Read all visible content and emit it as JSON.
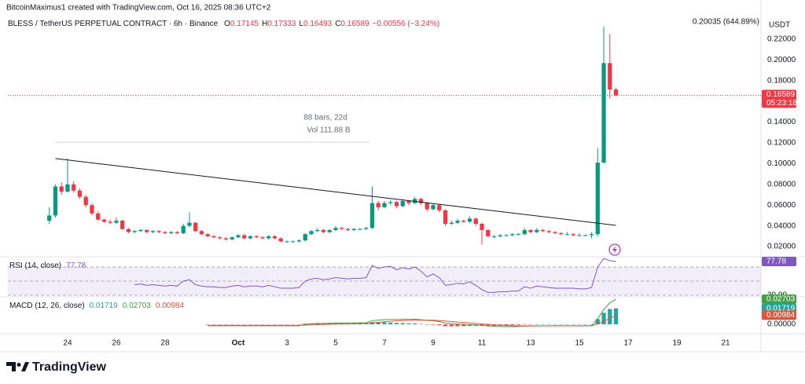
{
  "chart_data": {
    "type": "candlestick",
    "credit": "BitcoinMaximus1 created with TradingView.com, Oct 16, 2025 08:36 UTC+2",
    "title": "BLESS / TetherUS PERPETUAL CONTRACT · 6h · Binance",
    "ohlc_labels": [
      "O",
      "H",
      "L",
      "C"
    ],
    "change": "−0.00556 (−3.24%)",
    "currency": "USDT",
    "high_label": "0.20035 (644.89%)",
    "countdown": "05:23:18",
    "measure_labels": [
      "88 bars, 22d",
      "Vol 111.88 B"
    ],
    "brand": "TradingView",
    "up_color": "#089981",
    "down_color": "#f23645",
    "grid": false,
    "xlim": [
      -2.45,
      28.45
    ],
    "xticks": [
      {
        "value": 0,
        "label": "24"
      },
      {
        "value": 2,
        "label": "26"
      },
      {
        "value": 4,
        "label": "28"
      },
      {
        "value": 7,
        "label": "Oct"
      },
      {
        "value": 9,
        "label": "3"
      },
      {
        "value": 11,
        "label": "5"
      },
      {
        "value": 13,
        "label": "7"
      },
      {
        "value": 15,
        "label": "9"
      },
      {
        "value": 17,
        "label": "11"
      },
      {
        "value": 19,
        "label": "13"
      },
      {
        "value": 21,
        "label": "15"
      },
      {
        "value": 23,
        "label": "17"
      },
      {
        "value": 25,
        "label": "19"
      },
      {
        "value": 27,
        "label": "21"
      }
    ],
    "ylim": [
      0.0102,
      0.2427
    ],
    "yticks": [
      {
        "value": 0.02,
        "label": "0.02000"
      },
      {
        "value": 0.04,
        "label": "0.04000"
      },
      {
        "value": 0.06,
        "label": "0.06000"
      },
      {
        "value": 0.08,
        "label": "0.08000"
      },
      {
        "value": 0.1,
        "label": "0.10000"
      },
      {
        "value": 0.12,
        "label": "0.12000"
      },
      {
        "value": 0.14,
        "label": "0.14000"
      },
      {
        "value": 0.16,
        "label": "0.16000"
      },
      {
        "value": 0.18,
        "label": "0.18000"
      },
      {
        "value": 0.2,
        "label": "0.20000"
      },
      {
        "value": 0.22,
        "label": "0.22000"
      }
    ],
    "x": [
      -0.75,
      -0.5,
      -0.25,
      0,
      0.25,
      0.5,
      0.75,
      1,
      1.25,
      1.5,
      1.75,
      2,
      2.25,
      2.5,
      2.75,
      3,
      3.25,
      3.5,
      3.75,
      4,
      4.25,
      4.5,
      4.75,
      5,
      5.25,
      5.5,
      5.75,
      6,
      6.25,
      6.5,
      6.75,
      7,
      7.25,
      7.5,
      7.75,
      8,
      8.25,
      8.5,
      8.75,
      9,
      9.25,
      9.5,
      9.75,
      10,
      10.25,
      10.5,
      10.75,
      11,
      11.25,
      11.5,
      11.75,
      12,
      12.25,
      12.5,
      12.75,
      13,
      13.25,
      13.5,
      13.75,
      14,
      14.25,
      14.5,
      14.75,
      15,
      15.25,
      15.5,
      15.75,
      16,
      16.25,
      16.5,
      16.75,
      17,
      17.25,
      17.5,
      17.75,
      18,
      18.25,
      18.5,
      18.75,
      19,
      19.25,
      19.5,
      19.75,
      20,
      20.25,
      20.5,
      20.75,
      21,
      21.25,
      21.5,
      21.75,
      22,
      22.25,
      22.5
    ],
    "candles": [
      [
        0.045,
        0.058,
        0.042,
        0.05
      ],
      [
        0.05,
        0.08,
        0.048,
        0.078
      ],
      [
        0.078,
        0.082,
        0.07,
        0.073
      ],
      [
        0.073,
        0.105,
        0.072,
        0.08
      ],
      [
        0.08,
        0.083,
        0.072,
        0.074
      ],
      [
        0.074,
        0.076,
        0.066,
        0.068
      ],
      [
        0.068,
        0.07,
        0.058,
        0.06
      ],
      [
        0.06,
        0.062,
        0.05,
        0.052
      ],
      [
        0.052,
        0.054,
        0.045,
        0.046
      ],
      [
        0.046,
        0.047,
        0.043,
        0.044
      ],
      [
        0.044,
        0.046,
        0.042,
        0.043
      ],
      [
        0.043,
        0.048,
        0.042,
        0.045
      ],
      [
        0.045,
        0.046,
        0.036,
        0.037
      ],
      [
        0.037,
        0.038,
        0.033,
        0.034
      ],
      [
        0.034,
        0.036,
        0.033,
        0.035
      ],
      [
        0.035,
        0.037,
        0.034,
        0.036
      ],
      [
        0.036,
        0.037,
        0.033,
        0.034
      ],
      [
        0.034,
        0.036,
        0.033,
        0.035
      ],
      [
        0.035,
        0.036,
        0.033,
        0.034
      ],
      [
        0.034,
        0.035,
        0.032,
        0.033
      ],
      [
        0.033,
        0.035,
        0.032,
        0.034
      ],
      [
        0.034,
        0.035,
        0.032,
        0.033
      ],
      [
        0.033,
        0.042,
        0.032,
        0.04
      ],
      [
        0.04,
        0.053,
        0.039,
        0.043
      ],
      [
        0.043,
        0.044,
        0.034,
        0.035
      ],
      [
        0.035,
        0.036,
        0.031,
        0.032
      ],
      [
        0.032,
        0.033,
        0.029,
        0.03
      ],
      [
        0.03,
        0.031,
        0.028,
        0.029
      ],
      [
        0.029,
        0.03,
        0.027,
        0.028
      ],
      [
        0.028,
        0.029,
        0.026,
        0.027
      ],
      [
        0.027,
        0.03,
        0.026,
        0.029
      ],
      [
        0.029,
        0.032,
        0.028,
        0.031
      ],
      [
        0.031,
        0.032,
        0.027,
        0.028
      ],
      [
        0.028,
        0.031,
        0.027,
        0.03
      ],
      [
        0.03,
        0.031,
        0.028,
        0.029
      ],
      [
        0.029,
        0.03,
        0.027,
        0.028
      ],
      [
        0.028,
        0.031,
        0.027,
        0.03
      ],
      [
        0.03,
        0.031,
        0.027,
        0.028
      ],
      [
        0.028,
        0.029,
        0.024,
        0.025
      ],
      [
        0.025,
        0.026,
        0.024,
        0.025
      ],
      [
        0.025,
        0.026,
        0.024,
        0.025
      ],
      [
        0.025,
        0.027,
        0.024,
        0.026
      ],
      [
        0.026,
        0.033,
        0.025,
        0.032
      ],
      [
        0.032,
        0.036,
        0.031,
        0.035
      ],
      [
        0.035,
        0.038,
        0.034,
        0.036
      ],
      [
        0.036,
        0.037,
        0.033,
        0.034
      ],
      [
        0.034,
        0.037,
        0.033,
        0.036
      ],
      [
        0.036,
        0.04,
        0.035,
        0.038
      ],
      [
        0.038,
        0.039,
        0.036,
        0.037
      ],
      [
        0.037,
        0.038,
        0.035,
        0.036
      ],
      [
        0.036,
        0.038,
        0.035,
        0.037
      ],
      [
        0.037,
        0.038,
        0.036,
        0.037
      ],
      [
        0.037,
        0.039,
        0.036,
        0.038
      ],
      [
        0.038,
        0.078,
        0.037,
        0.062
      ],
      [
        0.062,
        0.064,
        0.055,
        0.058
      ],
      [
        0.058,
        0.064,
        0.057,
        0.062
      ],
      [
        0.062,
        0.065,
        0.06,
        0.063
      ],
      [
        0.063,
        0.064,
        0.057,
        0.059
      ],
      [
        0.059,
        0.066,
        0.058,
        0.064
      ],
      [
        0.064,
        0.065,
        0.06,
        0.062
      ],
      [
        0.062,
        0.068,
        0.061,
        0.066
      ],
      [
        0.066,
        0.067,
        0.06,
        0.062
      ],
      [
        0.062,
        0.063,
        0.054,
        0.056
      ],
      [
        0.056,
        0.061,
        0.055,
        0.06
      ],
      [
        0.06,
        0.061,
        0.053,
        0.055
      ],
      [
        0.055,
        0.056,
        0.04,
        0.042
      ],
      [
        0.042,
        0.045,
        0.041,
        0.043
      ],
      [
        0.043,
        0.047,
        0.042,
        0.045
      ],
      [
        0.045,
        0.046,
        0.043,
        0.044
      ],
      [
        0.044,
        0.049,
        0.043,
        0.047
      ],
      [
        0.047,
        0.048,
        0.04,
        0.042
      ],
      [
        0.042,
        0.043,
        0.022,
        0.036
      ],
      [
        0.036,
        0.037,
        0.029,
        0.03
      ],
      [
        0.03,
        0.031,
        0.028,
        0.03
      ],
      [
        0.03,
        0.032,
        0.029,
        0.031
      ],
      [
        0.031,
        0.032,
        0.03,
        0.031
      ],
      [
        0.031,
        0.033,
        0.03,
        0.032
      ],
      [
        0.032,
        0.033,
        0.031,
        0.032
      ],
      [
        0.032,
        0.038,
        0.031,
        0.036
      ],
      [
        0.036,
        0.037,
        0.033,
        0.034
      ],
      [
        0.034,
        0.038,
        0.033,
        0.036
      ],
      [
        0.036,
        0.037,
        0.034,
        0.035
      ],
      [
        0.035,
        0.036,
        0.033,
        0.034
      ],
      [
        0.034,
        0.035,
        0.032,
        0.033
      ],
      [
        0.033,
        0.034,
        0.031,
        0.032
      ],
      [
        0.032,
        0.034,
        0.031,
        0.032
      ],
      [
        0.032,
        0.033,
        0.03,
        0.031
      ],
      [
        0.031,
        0.033,
        0.03,
        0.031
      ],
      [
        0.031,
        0.032,
        0.03,
        0.031
      ],
      [
        0.031,
        0.034,
        0.028,
        0.032
      ],
      [
        0.032,
        0.115,
        0.03,
        0.101
      ],
      [
        0.101,
        0.232,
        0.1,
        0.197
      ],
      [
        0.197,
        0.225,
        0.163,
        0.17145
      ],
      [
        0.17145,
        0.17333,
        0.16493,
        0.16589
      ]
    ],
    "trendline": {
      "x": [
        -0.5,
        22.5
      ],
      "y": [
        0.105,
        0.0405
      ],
      "color": "#131722"
    },
    "indicators": [
      {
        "type": "line",
        "title": "RSI (14, close)",
        "ylim": [
          27.8,
          84.4
        ],
        "yticks": [
          {
            "value": 30,
            "label": "30.00"
          }
        ],
        "bands": [
          70,
          50,
          30
        ],
        "band_color": "#9598a1",
        "band_fill": "rgba(126,87,194,0.1)",
        "series": [
          {
            "color": "#7e57c2",
            "values": [
              null,
              null,
              null,
              null,
              null,
              null,
              null,
              null,
              null,
              null,
              null,
              null,
              null,
              null,
              45,
              46,
              44,
              45,
              44,
              43,
              44,
              43,
              50,
              52,
              45,
              43,
              42,
              42,
              41,
              41,
              43,
              44,
              42,
              43,
              43,
              42,
              44,
              42,
              40,
              40,
              40,
              41,
              50,
              53,
              54,
              52,
              53,
              55,
              54,
              53,
              54,
              54,
              55,
              72,
              68,
              70,
              71,
              66,
              69,
              67,
              70,
              64,
              56,
              60,
              55,
              44,
              45,
              47,
              46,
              49,
              44,
              38,
              34,
              34,
              35,
              35,
              36,
              36,
              42,
              40,
              43,
              42,
              41,
              40,
              40,
              40,
              40,
              39,
              39,
              41,
              70,
              82,
              79,
              77.78
            ]
          }
        ]
      },
      {
        "type": "macd",
        "title": "MACD (12, 26, close)",
        "ylim": [
          -0.0101,
          0.0296
        ],
        "yticks": [
          {
            "value": 0,
            "label": "0.00000"
          }
        ],
        "series": [
          {
            "color": "#26a69a",
            "negative_color": "#ef5350",
            "values": [
              null,
              null,
              null,
              null,
              null,
              null,
              null,
              null,
              null,
              null,
              null,
              null,
              null,
              null,
              null,
              null,
              null,
              null,
              null,
              null,
              null,
              null,
              null,
              null,
              null,
              null,
              -0.0003,
              -0.0003,
              -0.0003,
              -0.0003,
              -0.0003,
              -0.0003,
              -0.0003,
              -0.0003,
              -0.0003,
              -0.0003,
              -0.0003,
              -0.0003,
              -0.0003,
              -0.0003,
              -0.0003,
              -0.0003,
              0.0008,
              0.0011,
              0.0014,
              0.0012,
              0.0012,
              0.0012,
              0.0011,
              0.0009,
              0.0007,
              0.0007,
              0.0007,
              0.0024,
              0.0023,
              0.0022,
              0.0019,
              0.0015,
              0.0014,
              0.0011,
              0.001,
              0.0004,
              -0.0003,
              -0.0006,
              -0.0011,
              -0.0021,
              -0.0022,
              -0.0021,
              -0.002,
              -0.0017,
              -0.0016,
              -0.0017,
              -0.0018,
              -0.0017,
              -0.0015,
              -0.0013,
              -0.001,
              -0.0007,
              -0.0002,
              -0.0001,
              0.0001,
              0.0001,
              0.0002,
              0.0001,
              0.0001,
              0.0001,
              0.0001,
              0.0001,
              0,
              0.0001,
              0.0056,
              0.0125,
              0.0165,
              0.01719
            ]
          },
          {
            "color": "#43a047",
            "values": [
              null,
              null,
              null,
              null,
              null,
              null,
              null,
              null,
              null,
              null,
              null,
              null,
              null,
              null,
              null,
              null,
              null,
              null,
              null,
              null,
              null,
              null,
              null,
              null,
              null,
              null,
              -0.0015,
              -0.0015,
              -0.0015,
              -0.0015,
              -0.0015,
              -0.0015,
              -0.0015,
              -0.0015,
              -0.0015,
              -0.0015,
              -0.0015,
              -0.0015,
              -0.0015,
              -0.0015,
              -0.0015,
              -0.0015,
              0,
              0.0005,
              0.001,
              0.001,
              0.0012,
              0.0014,
              0.0015,
              0.0015,
              0.0015,
              0.0016,
              0.0017,
              0.004,
              0.0045,
              0.005,
              0.0052,
              0.0052,
              0.0054,
              0.0054,
              0.0055,
              0.005,
              0.0042,
              0.0038,
              0.003,
              0.0015,
              0.0008,
              0.0004,
              0,
              -0.0002,
              -0.0006,
              -0.0012,
              -0.0018,
              -0.0022,
              -0.0024,
              -0.0025,
              -0.0025,
              -0.0024,
              -0.002,
              -0.0019,
              -0.0017,
              -0.0016,
              -0.0015,
              -0.0015,
              -0.0015,
              -0.0015,
              -0.0015,
              -0.0015,
              -0.0015,
              -0.0014,
              0.006,
              0.016,
              0.023,
              0.02703
            ]
          },
          {
            "color": "#e0533d",
            "values": [
              null,
              null,
              null,
              null,
              null,
              null,
              null,
              null,
              null,
              null,
              null,
              null,
              null,
              null,
              null,
              null,
              null,
              null,
              null,
              null,
              null,
              null,
              null,
              null,
              null,
              null,
              -0.0012,
              -0.0012,
              -0.0012,
              -0.0012,
              -0.0012,
              -0.0012,
              -0.0012,
              -0.0012,
              -0.0012,
              -0.0012,
              -0.0012,
              -0.0012,
              -0.0012,
              -0.0012,
              -0.0012,
              -0.0012,
              -0.0008,
              -0.0006,
              -0.0004,
              -0.0002,
              0,
              0.0002,
              0.0004,
              0.0006,
              0.0008,
              0.0009,
              0.001,
              0.0016,
              0.0022,
              0.0028,
              0.0033,
              0.0037,
              0.004,
              0.0043,
              0.0045,
              0.0046,
              0.0045,
              0.0044,
              0.0041,
              0.0036,
              0.003,
              0.0025,
              0.002,
              0.0015,
              0.001,
              0.0005,
              0,
              -0.0005,
              -0.0009,
              -0.0012,
              -0.0015,
              -0.0017,
              -0.0018,
              -0.0018,
              -0.0018,
              -0.0017,
              -0.0017,
              -0.0016,
              -0.0016,
              -0.0016,
              -0.0016,
              -0.0016,
              -0.0015,
              -0.0015,
              0.0004,
              0.0035,
              0.0065,
              0.00984
            ]
          }
        ]
      }
    ]
  }
}
